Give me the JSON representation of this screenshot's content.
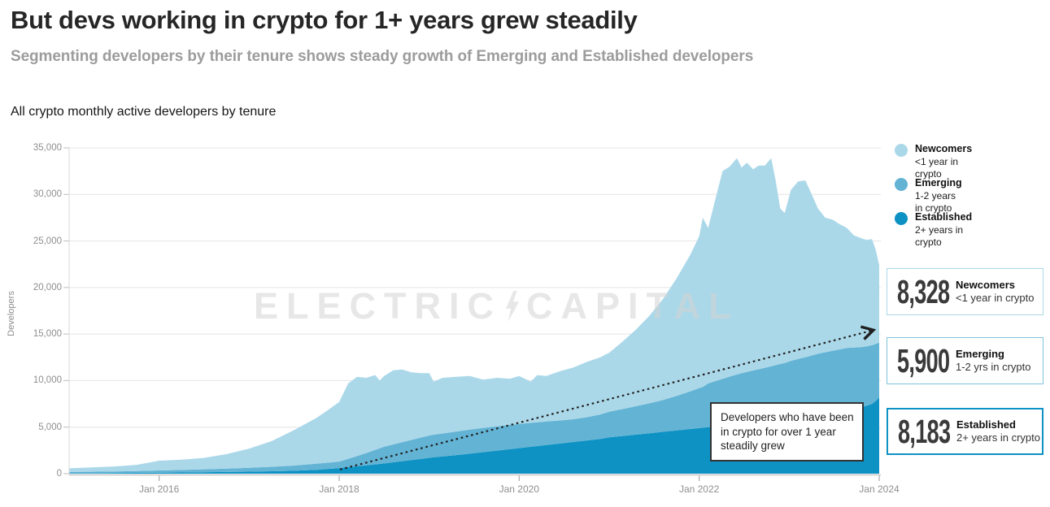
{
  "header": {
    "title": "But devs working in crypto for 1+ years grew steadily",
    "subtitle": "Segmenting developers by their tenure shows steady growth of Emerging and Established developers"
  },
  "chart": {
    "title": "All crypto monthly active developers by tenure",
    "y_axis_label": "Developers",
    "watermark": {
      "word1": "ELECTRIC",
      "word2": "CAPITAL",
      "bolt_icon": "lightning-bolt-icon"
    },
    "annotation": "Developers who have been in crypto for over 1 year steadily grew"
  },
  "legend": {
    "items": [
      {
        "name": "Newcomers",
        "desc": "<1 year in crypto",
        "color": "#ABD8E9"
      },
      {
        "name": "Emerging",
        "desc": "1-2 years in crypto",
        "color": "#63B3D4"
      },
      {
        "name": "Established",
        "desc": "2+ years in crypto",
        "color": "#0E92C4"
      }
    ]
  },
  "stat_cards": [
    {
      "value": "8,328",
      "name": "Newcomers",
      "desc": "<1 year in crypto",
      "border_color": "#ABD8E9",
      "border_width": 1.5
    },
    {
      "value": "5,900",
      "name": "Emerging",
      "desc": "1-2 yrs in crypto",
      "border_color": "#7FC2DC",
      "border_width": 1.5
    },
    {
      "value": "8,183",
      "name": "Established",
      "desc": "2+ years in crypto",
      "border_color": "#0E92C4",
      "border_width": 2.5
    }
  ],
  "chart_data": {
    "type": "area",
    "stacked": true,
    "title": "All crypto monthly active developers by tenure",
    "xlabel": "",
    "ylabel": "Developers",
    "ylim": [
      0,
      35000
    ],
    "x_domain": [
      2015.0,
      2024.0
    ],
    "grid": true,
    "legend_position": "right",
    "y_ticks": {
      "values": [
        0,
        5000,
        10000,
        15000,
        20000,
        25000,
        30000,
        35000
      ],
      "labels": [
        "0",
        "5,000",
        "10,000",
        "15,000",
        "20,000",
        "25,000",
        "30,000",
        "35,000"
      ]
    },
    "x_ticks": {
      "years": [
        2016,
        2018,
        2020,
        2022,
        2024
      ],
      "labels": [
        "Jan 2016",
        "Jan 2018",
        "Jan 2020",
        "Jan 2022",
        "Jan 2024"
      ]
    },
    "x": [
      2015.0,
      2015.25,
      2015.5,
      2015.75,
      2016.0,
      2016.25,
      2016.5,
      2016.75,
      2017.0,
      2017.25,
      2017.5,
      2017.75,
      2017.9,
      2018.0,
      2018.1,
      2018.2,
      2018.3,
      2018.4,
      2018.45,
      2018.5,
      2018.6,
      2018.7,
      2018.8,
      2018.9,
      2019.0,
      2019.05,
      2019.15,
      2019.3,
      2019.45,
      2019.6,
      2019.75,
      2019.9,
      2020.0,
      2020.13,
      2020.2,
      2020.3,
      2020.45,
      2020.6,
      2020.75,
      2020.9,
      2021.0,
      2021.15,
      2021.3,
      2021.45,
      2021.6,
      2021.75,
      2021.9,
      2022.0,
      2022.04,
      2022.1,
      2022.18,
      2022.26,
      2022.34,
      2022.42,
      2022.47,
      2022.53,
      2022.6,
      2022.66,
      2022.73,
      2022.8,
      2022.85,
      2022.9,
      2022.95,
      2023.02,
      2023.1,
      2023.18,
      2023.26,
      2023.32,
      2023.4,
      2023.48,
      2023.56,
      2023.64,
      2023.72,
      2023.8,
      2023.86,
      2023.92,
      2023.96,
      2024.0
    ],
    "series": [
      {
        "name": "Established",
        "tenure": "2+ years in crypto",
        "color": "#0E92C4",
        "values": [
          55,
          65,
          75,
          90,
          110,
          130,
          155,
          185,
          220,
          260,
          310,
          420,
          520,
          600,
          700,
          800,
          900,
          1000,
          1050,
          1100,
          1220,
          1340,
          1460,
          1580,
          1700,
          1760,
          1850,
          2000,
          2150,
          2310,
          2480,
          2640,
          2750,
          2890,
          2970,
          3080,
          3240,
          3400,
          3570,
          3740,
          3900,
          4050,
          4200,
          4350,
          4500,
          4650,
          4800,
          4900,
          4940,
          5000,
          5100,
          5190,
          5290,
          5380,
          5440,
          5510,
          5590,
          5660,
          5740,
          5820,
          5880,
          5940,
          6000,
          6120,
          6220,
          6320,
          6420,
          6500,
          6600,
          6700,
          6800,
          6900,
          7000,
          7150,
          7300,
          7500,
          7800,
          8183
        ]
      },
      {
        "name": "Emerging",
        "tenure": "1-2 years in crypto",
        "color": "#63B3D4",
        "values": [
          125,
          145,
          165,
          195,
          240,
          275,
          315,
          360,
          415,
          480,
          560,
          660,
          685,
          700,
          900,
          1100,
          1320,
          1550,
          1675,
          1800,
          1920,
          2040,
          2160,
          2280,
          2400,
          2430,
          2470,
          2530,
          2580,
          2610,
          2610,
          2600,
          2600,
          2570,
          2550,
          2520,
          2480,
          2450,
          2500,
          2620,
          2760,
          2900,
          3050,
          3220,
          3420,
          3700,
          4050,
          4300,
          4380,
          4700,
          4850,
          5000,
          5150,
          5280,
          5350,
          5420,
          5500,
          5560,
          5640,
          5720,
          5780,
          5840,
          5900,
          6000,
          6100,
          6200,
          6300,
          6380,
          6450,
          6500,
          6550,
          6600,
          6550,
          6450,
          6380,
          6300,
          6150,
          5900
        ]
      },
      {
        "name": "Newcomers",
        "tenure": "<1 year in crypto",
        "color": "#ABD8E9",
        "values": [
          400,
          460,
          540,
          665,
          1050,
          1095,
          1230,
          1555,
          2065,
          2760,
          3830,
          4920,
          5795,
          6400,
          8100,
          8500,
          8080,
          8050,
          7275,
          7600,
          7960,
          7820,
          7280,
          6940,
          6700,
          5710,
          5980,
          5870,
          5770,
          5180,
          5210,
          4960,
          5150,
          4440,
          5080,
          4900,
          5280,
          5550,
          5930,
          6140,
          6340,
          7250,
          8250,
          9430,
          10880,
          12650,
          14650,
          16300,
          18180,
          16700,
          19550,
          22310,
          22560,
          23240,
          22110,
          22470,
          21610,
          21880,
          21720,
          22360,
          19840,
          16720,
          16100,
          18380,
          19080,
          18980,
          17080,
          15620,
          14450,
          14100,
          13450,
          12900,
          12050,
          11700,
          11420,
          11400,
          10150,
          8328
        ]
      }
    ],
    "latest_values": {
      "Newcomers": 8328,
      "Emerging": 5900,
      "Established": 8183
    },
    "trend_arrow": {
      "from": {
        "year": 2018.01,
        "value": 450
      },
      "to": {
        "year": 2023.91,
        "value": 15360
      },
      "style": "dashed",
      "color": "#1F1F1F"
    }
  }
}
